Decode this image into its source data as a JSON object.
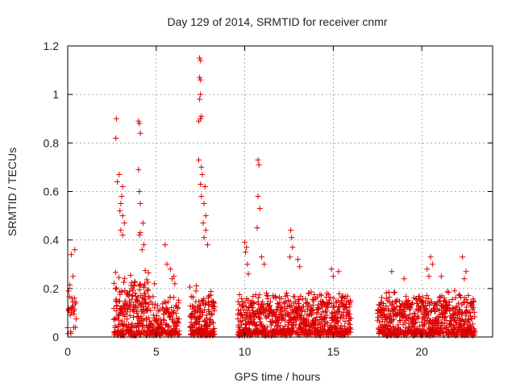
{
  "chart_data": {
    "type": "scatter",
    "title": "Day 129 of 2014, SRMTID for receiver cnmr",
    "xlabel": "GPS time / hours",
    "ylabel": "SRMTID / TECUs",
    "xlim": [
      0,
      24
    ],
    "ylim": [
      0,
      1.2
    ],
    "xticks": [
      0,
      5,
      10,
      15,
      20
    ],
    "xtick_labels": [
      "0",
      "5",
      "10",
      "15",
      "20"
    ],
    "yticks": [
      0,
      0.2,
      0.4,
      0.6,
      0.8,
      1.0,
      1.2
    ],
    "ytick_labels": [
      "0",
      "0.2",
      "0.4",
      "0.6",
      "0.8",
      "1",
      "1.2"
    ],
    "grid": true,
    "marker": "+",
    "series": [
      {
        "name": "SRMTID",
        "color": "#dd0000",
        "segments": [
          {
            "t0": 0.0,
            "t1": 0.5,
            "step": 0.02,
            "base": 0.09,
            "spread": 0.13,
            "peaks": [
              [
                0.2,
                0.34
              ],
              [
                0.4,
                0.36
              ],
              [
                0.3,
                0.25
              ],
              [
                0.05,
                0.19
              ]
            ]
          },
          {
            "t0": 2.6,
            "t1": 4.6,
            "step": 0.008,
            "base": 0.11,
            "spread": 0.17,
            "peaks": [
              [
                2.75,
                0.9
              ],
              [
                2.72,
                0.82
              ],
              [
                2.9,
                0.67
              ],
              [
                2.8,
                0.64
              ],
              [
                3.1,
                0.62
              ],
              [
                3.05,
                0.58
              ],
              [
                3.0,
                0.55
              ],
              [
                2.95,
                0.52
              ],
              [
                3.1,
                0.5
              ],
              [
                3.2,
                0.47
              ],
              [
                3.0,
                0.44
              ],
              [
                3.1,
                0.42
              ],
              [
                4.0,
                0.89
              ],
              [
                4.05,
                0.88
              ],
              [
                4.1,
                0.84
              ],
              [
                4.0,
                0.69
              ],
              [
                4.05,
                0.6
              ],
              [
                4.1,
                0.55
              ],
              [
                4.25,
                0.47
              ],
              [
                4.1,
                0.43
              ],
              [
                4.05,
                0.42
              ],
              [
                4.3,
                0.38
              ],
              [
                4.2,
                0.36
              ]
            ]
          },
          {
            "t0": 4.6,
            "t1": 6.3,
            "step": 0.01,
            "base": 0.07,
            "spread": 0.12,
            "peaks": [
              [
                5.5,
                0.38
              ],
              [
                5.6,
                0.3
              ],
              [
                5.8,
                0.28
              ],
              [
                6.0,
                0.25
              ],
              [
                5.9,
                0.24
              ],
              [
                6.05,
                0.22
              ],
              [
                4.9,
                0.22
              ]
            ]
          },
          {
            "t0": 6.9,
            "t1": 8.3,
            "step": 0.008,
            "base": 0.08,
            "spread": 0.14,
            "peaks": [
              [
                7.45,
                1.15
              ],
              [
                7.5,
                1.14
              ],
              [
                7.45,
                1.07
              ],
              [
                7.5,
                1.06
              ],
              [
                7.5,
                1.0
              ],
              [
                7.45,
                0.98
              ],
              [
                7.5,
                0.9
              ],
              [
                7.55,
                0.91
              ],
              [
                7.4,
                0.89
              ],
              [
                7.4,
                0.73
              ],
              [
                7.55,
                0.7
              ],
              [
                7.6,
                0.67
              ],
              [
                7.5,
                0.63
              ],
              [
                7.75,
                0.62
              ],
              [
                7.55,
                0.58
              ],
              [
                7.7,
                0.55
              ],
              [
                7.8,
                0.5
              ],
              [
                7.65,
                0.47
              ],
              [
                7.8,
                0.44
              ],
              [
                7.7,
                0.41
              ],
              [
                7.9,
                0.38
              ]
            ]
          },
          {
            "t0": 9.6,
            "t1": 16.0,
            "step": 0.008,
            "base": 0.08,
            "spread": 0.12,
            "peaks": [
              [
                10.75,
                0.73
              ],
              [
                10.8,
                0.71
              ],
              [
                10.75,
                0.58
              ],
              [
                10.85,
                0.53
              ],
              [
                10.7,
                0.45
              ],
              [
                10.0,
                0.39
              ],
              [
                10.1,
                0.37
              ],
              [
                10.05,
                0.35
              ],
              [
                10.15,
                0.3
              ],
              [
                10.2,
                0.26
              ],
              [
                10.95,
                0.33
              ],
              [
                11.1,
                0.3
              ],
              [
                12.6,
                0.44
              ],
              [
                12.65,
                0.41
              ],
              [
                12.7,
                0.37
              ],
              [
                12.55,
                0.33
              ],
              [
                13.0,
                0.32
              ],
              [
                13.1,
                0.29
              ],
              [
                14.9,
                0.28
              ],
              [
                15.3,
                0.27
              ],
              [
                15.0,
                0.25
              ]
            ]
          },
          {
            "t0": 17.5,
            "t1": 23.0,
            "step": 0.008,
            "base": 0.08,
            "spread": 0.12,
            "peaks": [
              [
                18.3,
                0.27
              ],
              [
                19.0,
                0.24
              ],
              [
                20.5,
                0.33
              ],
              [
                20.3,
                0.28
              ],
              [
                20.6,
                0.3
              ],
              [
                20.4,
                0.25
              ],
              [
                21.1,
                0.25
              ],
              [
                22.3,
                0.33
              ],
              [
                22.5,
                0.27
              ],
              [
                22.4,
                0.24
              ]
            ]
          }
        ]
      }
    ]
  }
}
